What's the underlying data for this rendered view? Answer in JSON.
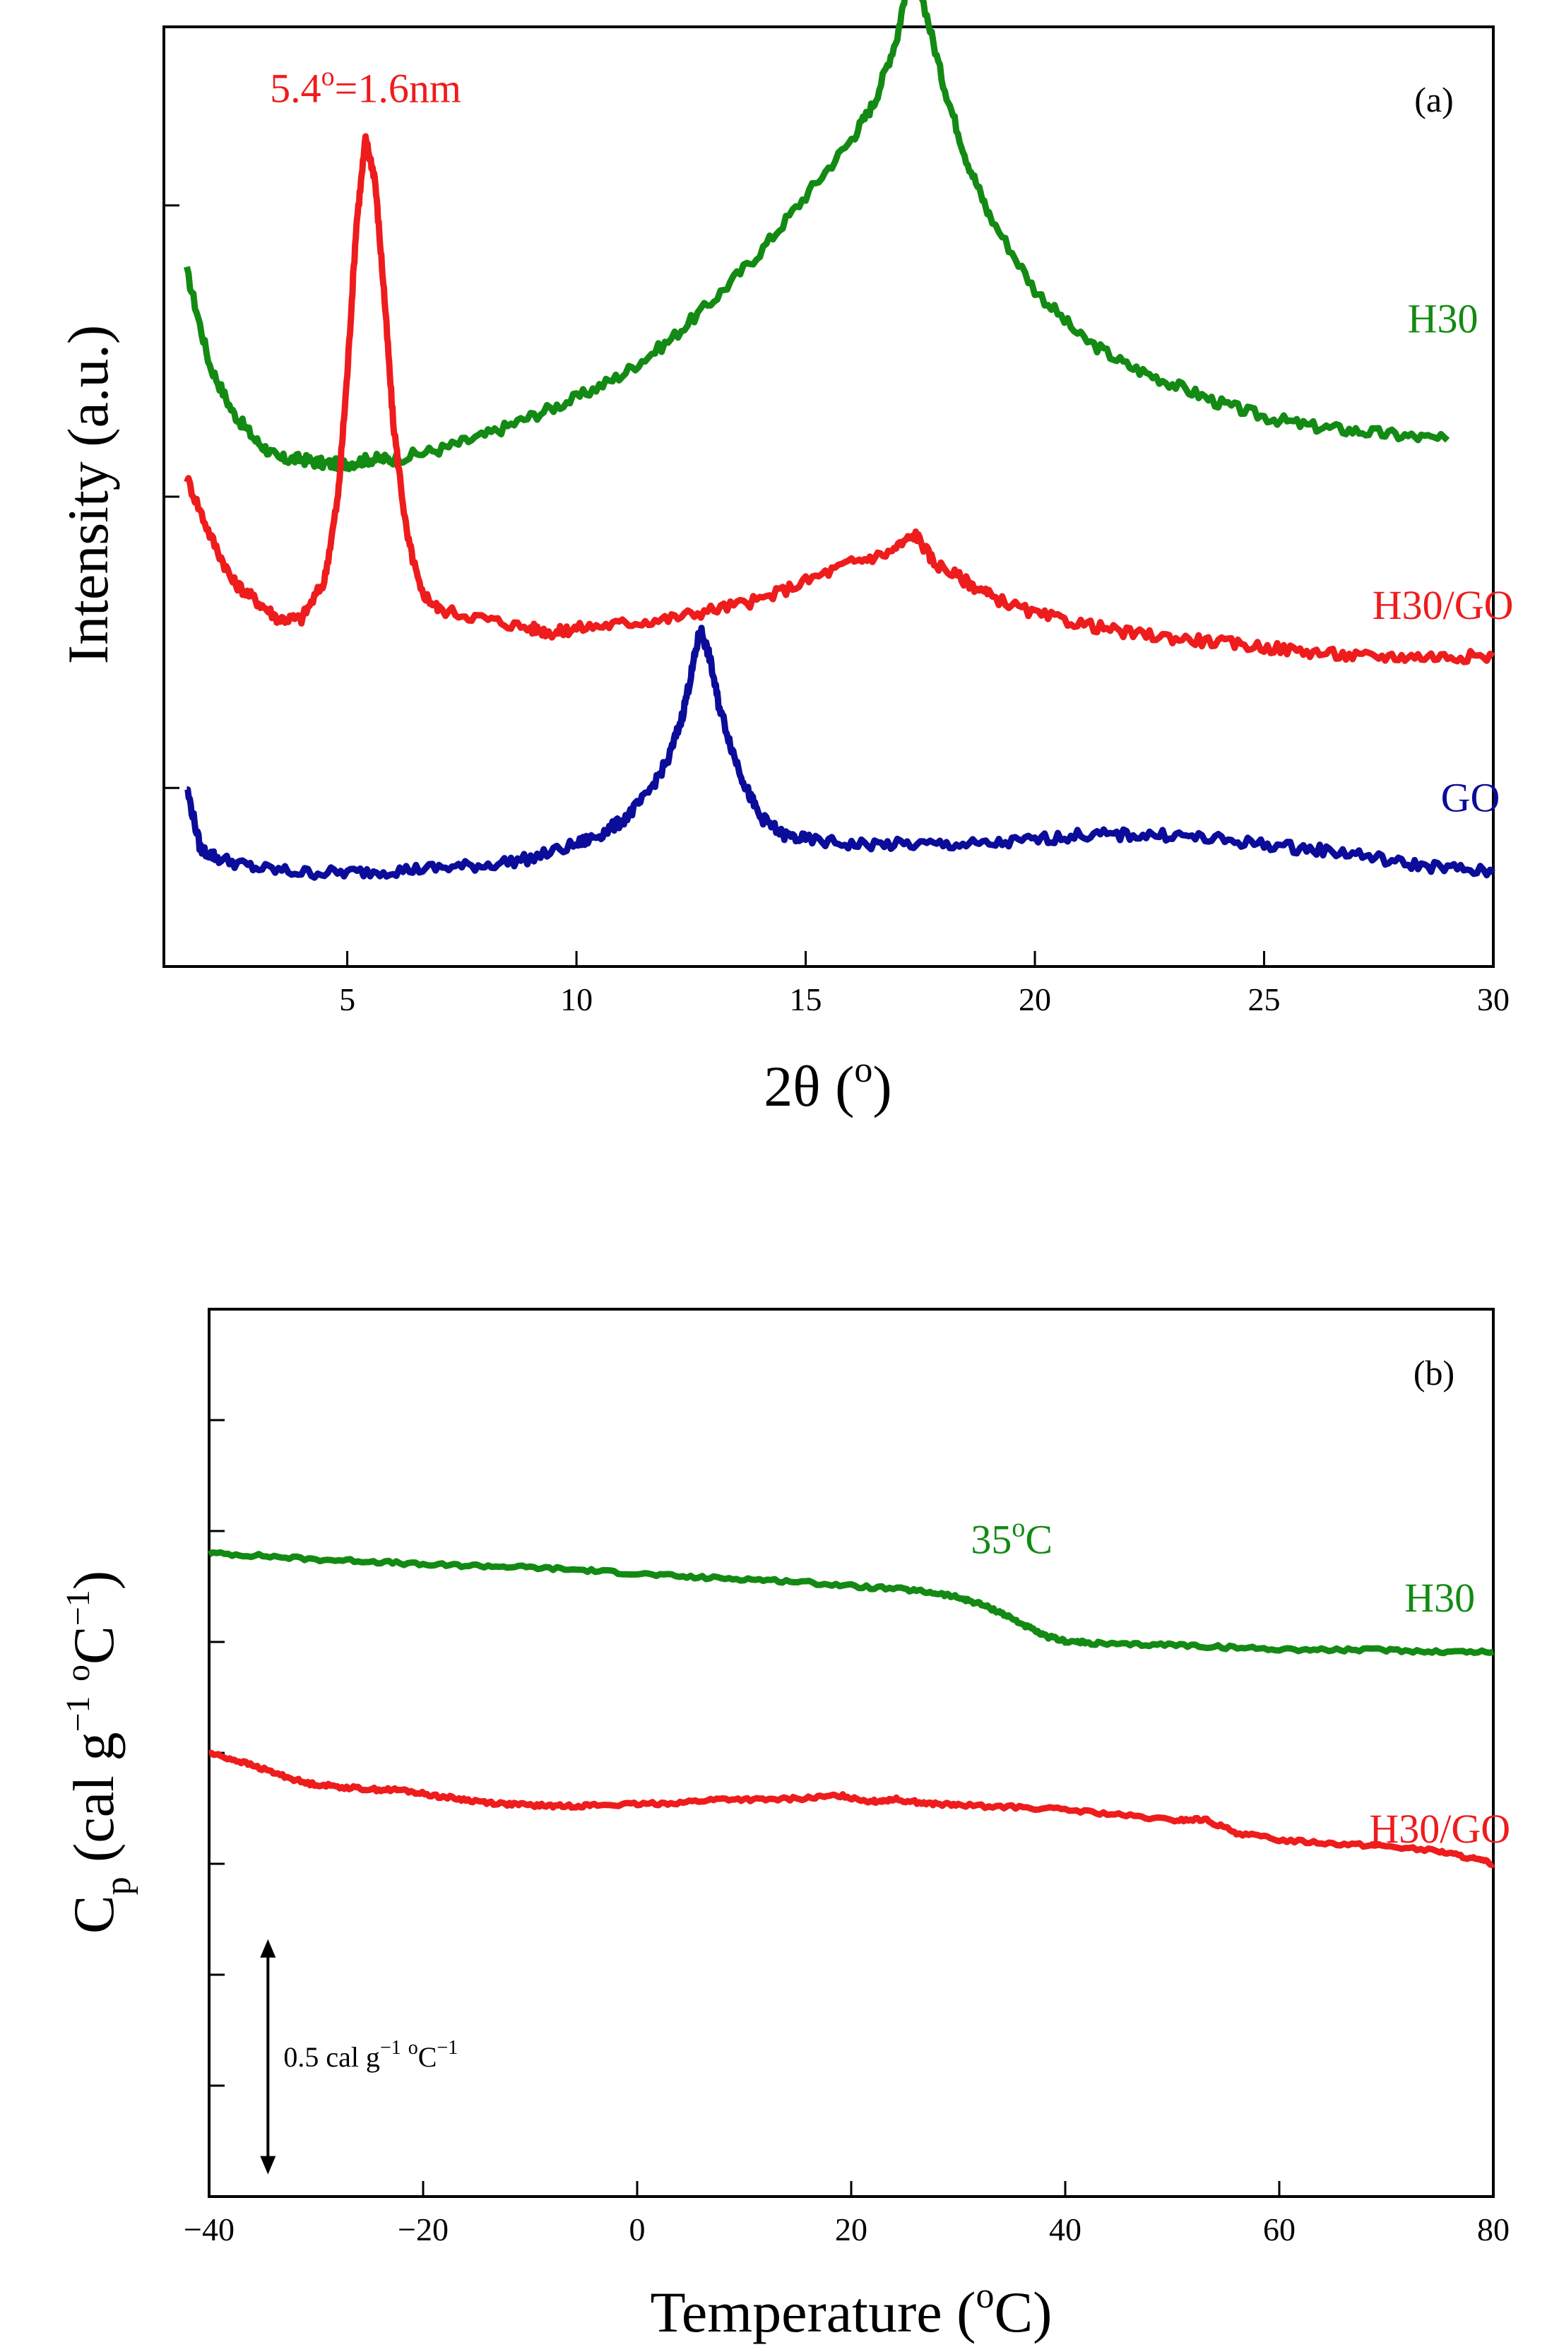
{
  "chart_data": [
    {
      "type": "line",
      "panel_label": "(a)",
      "xlabel_main": "2θ (",
      "xlabel_sup": "o",
      "xlabel_end": ")",
      "ylabel": "Intensity (a.u.)",
      "xlim": [
        1,
        30
      ],
      "ylim": [
        0,
        1
      ],
      "x_ticks": [
        5,
        10,
        15,
        20,
        25,
        30
      ],
      "y_ticks": [
        0.19,
        0.5,
        0.81
      ],
      "y_tick_labels_shown": false,
      "annotation": {
        "text_main": "5.4",
        "text_sup": "o",
        "text_end": "=1.6nm",
        "x": 5.4,
        "y": 0.92,
        "color": "#ee1c1c"
      },
      "series": [
        {
          "name": "H30",
          "color": "#138a13",
          "label_pos": [
            28.9,
            0.69
          ],
          "x": [
            1.5,
            2,
            2.5,
            3,
            3.5,
            4,
            4.5,
            5,
            5.5,
            6,
            7,
            8,
            9,
            10,
            11,
            12,
            13,
            14,
            15,
            16,
            16.5,
            17,
            17.3,
            17.5,
            18,
            18.5,
            19,
            20,
            21,
            22,
            23,
            24,
            25,
            26,
            27,
            28,
            29
          ],
          "values": [
            0.74,
            0.64,
            0.59,
            0.56,
            0.54,
            0.54,
            0.535,
            0.535,
            0.54,
            0.54,
            0.55,
            0.565,
            0.585,
            0.605,
            0.63,
            0.665,
            0.71,
            0.76,
            0.82,
            0.88,
            0.92,
            0.99,
            1.07,
            1.04,
            0.94,
            0.86,
            0.8,
            0.72,
            0.67,
            0.64,
            0.62,
            0.6,
            0.585,
            0.575,
            0.57,
            0.565,
            0.56
          ]
        },
        {
          "name": "H30/GO",
          "color": "#ee1c1c",
          "label_pos": [
            28.9,
            0.385
          ],
          "x": [
            1.5,
            2,
            2.5,
            3,
            3.5,
            4,
            4.5,
            4.8,
            5.0,
            5.2,
            5.4,
            5.6,
            5.8,
            6.0,
            6.3,
            6.6,
            7,
            8,
            9,
            9.5,
            10,
            11,
            12,
            13,
            14,
            15,
            16,
            16.8,
            17.4,
            17.8,
            18.5,
            19,
            20,
            21,
            22,
            23,
            24,
            25,
            26,
            27,
            28,
            29,
            30
          ],
          "values": [
            0.52,
            0.46,
            0.41,
            0.39,
            0.37,
            0.37,
            0.41,
            0.5,
            0.63,
            0.79,
            0.88,
            0.84,
            0.72,
            0.58,
            0.46,
            0.4,
            0.38,
            0.37,
            0.36,
            0.355,
            0.36,
            0.365,
            0.37,
            0.38,
            0.39,
            0.41,
            0.43,
            0.44,
            0.46,
            0.43,
            0.41,
            0.395,
            0.375,
            0.365,
            0.355,
            0.35,
            0.345,
            0.34,
            0.335,
            0.33,
            0.33,
            0.33,
            0.33
          ]
        },
        {
          "name": "GO",
          "color": "#0c0c9a",
          "label_pos": [
            29.5,
            0.18
          ],
          "x": [
            1.5,
            1.8,
            2.2,
            3,
            4,
            5,
            6,
            7,
            8,
            9,
            10,
            10.5,
            11,
            11.5,
            12,
            12.3,
            12.5,
            12.7,
            12.9,
            13.1,
            13.4,
            13.7,
            14,
            14.5,
            15,
            16,
            17,
            18,
            19,
            20,
            21,
            22,
            23,
            24,
            25,
            26,
            27,
            28,
            29,
            30
          ],
          "values": [
            0.19,
            0.125,
            0.115,
            0.105,
            0.1,
            0.1,
            0.102,
            0.105,
            0.108,
            0.115,
            0.13,
            0.14,
            0.155,
            0.18,
            0.22,
            0.265,
            0.31,
            0.36,
            0.33,
            0.28,
            0.23,
            0.19,
            0.16,
            0.14,
            0.135,
            0.13,
            0.13,
            0.13,
            0.13,
            0.135,
            0.14,
            0.14,
            0.14,
            0.135,
            0.13,
            0.125,
            0.12,
            0.11,
            0.105,
            0.1
          ]
        }
      ]
    },
    {
      "type": "line",
      "panel_label": "(b)",
      "xlabel_main": "Temperature (",
      "xlabel_sup": "o",
      "xlabel_end": "C)",
      "ylabel_main": "C",
      "ylabel_sub": "p",
      "ylabel_rest": "  (cal g",
      "ylabel_sup1": "−1",
      "ylabel_mid": " ",
      "ylabel_sup2": "o",
      "ylabel_c": "C",
      "ylabel_sup3": "−1",
      "ylabel_end": ")",
      "xlim": [
        -40,
        80
      ],
      "ylim": [
        0,
        1
      ],
      "x_ticks": [
        -40,
        -20,
        0,
        20,
        40,
        60,
        80
      ],
      "x_tick_labels": [
        "−40",
        "−20",
        "0",
        "20",
        "40",
        "60",
        "80"
      ],
      "y_ticks": [
        0.125,
        0.25,
        0.375,
        0.5,
        0.625,
        0.75,
        0.875
      ],
      "y_tick_labels_shown": false,
      "annotation": {
        "text_main": "35",
        "text_sup": "o",
        "text_end": "C",
        "x": 35,
        "y": 0.725,
        "color": "#138a13"
      },
      "scale_bar": {
        "text_main": "0.5 cal g",
        "text_sup1": "−1",
        "text_mid": " ",
        "text_sup2": "o",
        "text_c": "C",
        "text_sup3": "−1",
        "x": -34.5,
        "y_top": 0.29,
        "y_bottom": 0.025
      },
      "series": [
        {
          "name": "H30",
          "color": "#138a13",
          "label_pos": [
            75,
            0.675
          ],
          "x": [
            -40,
            -35,
            -30,
            -25,
            -20,
            -15,
            -10,
            -5,
            0,
            5,
            10,
            15,
            20,
            25,
            28,
            30,
            32,
            34,
            36,
            38,
            40,
            42,
            45,
            50,
            55,
            60,
            65,
            70,
            75,
            80
          ],
          "values": [
            0.725,
            0.722,
            0.718,
            0.716,
            0.712,
            0.711,
            0.709,
            0.706,
            0.702,
            0.698,
            0.696,
            0.693,
            0.688,
            0.684,
            0.68,
            0.675,
            0.668,
            0.658,
            0.645,
            0.632,
            0.626,
            0.624,
            0.622,
            0.622,
            0.619,
            0.617,
            0.616,
            0.616,
            0.614,
            0.614
          ]
        },
        {
          "name": "H30/GO",
          "color": "#ee1c1c",
          "label_pos": [
            75,
            0.415
          ],
          "x": [
            -40,
            -37,
            -34,
            -31,
            -28,
            -25,
            -22,
            -19,
            -16,
            -13,
            -10,
            -7,
            -4,
            0,
            4,
            8,
            12,
            16,
            19,
            22,
            24,
            27,
            30,
            35,
            40,
            45,
            50,
            53,
            56,
            60,
            65,
            70,
            75,
            78,
            80
          ],
          "values": [
            0.5,
            0.49,
            0.478,
            0.466,
            0.462,
            0.459,
            0.458,
            0.452,
            0.447,
            0.443,
            0.441,
            0.44,
            0.441,
            0.442,
            0.444,
            0.448,
            0.447,
            0.449,
            0.452,
            0.445,
            0.448,
            0.443,
            0.441,
            0.439,
            0.436,
            0.43,
            0.424,
            0.425,
            0.41,
            0.402,
            0.398,
            0.395,
            0.389,
            0.381,
            0.375
          ]
        }
      ]
    }
  ]
}
